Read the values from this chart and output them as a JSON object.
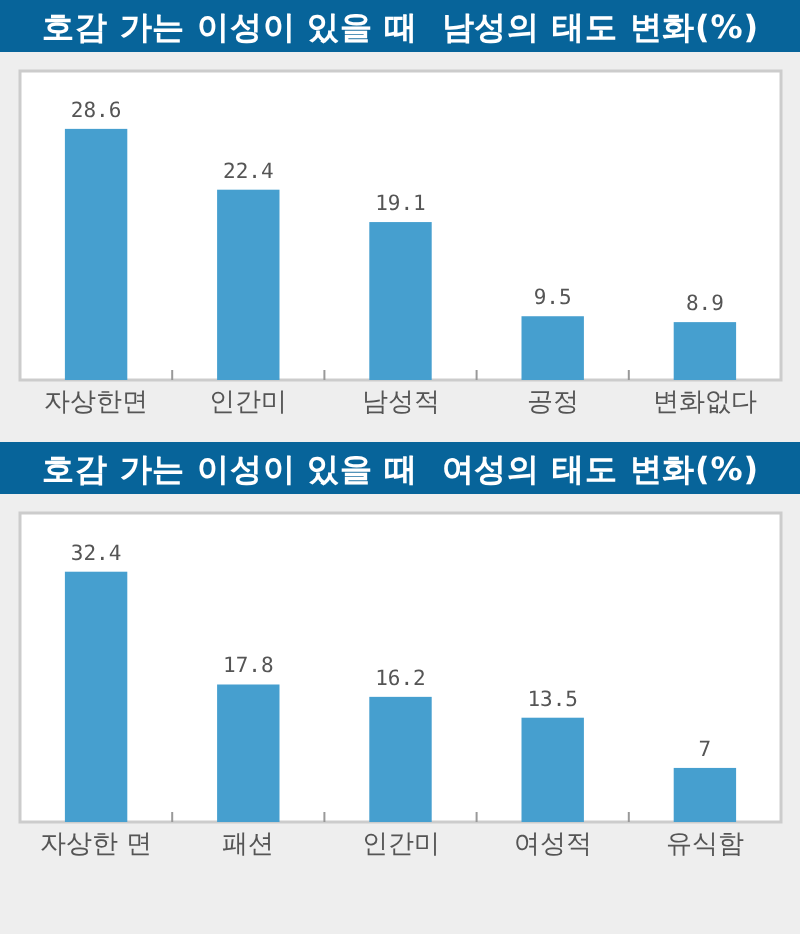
{
  "chart_data": [
    {
      "type": "bar",
      "title": "호감 가는 이성이 있을 때  남성의 태도 변화(%)",
      "categories": [
        "자상한면",
        "인간미",
        "남성적",
        "공정",
        "변화없다"
      ],
      "values": [
        28.6,
        22.4,
        19.1,
        9.5,
        8.9
      ],
      "color": "#469fcf",
      "ylim": [
        3,
        34.5
      ],
      "tick_labels": "x",
      "data_labels": true
    },
    {
      "type": "bar",
      "title": "호감 가는 이성이 있을 때  여성의 태도 변화(%)",
      "categories": [
        "자상한 면",
        "패션",
        "인간미",
        "여성적",
        "유식함"
      ],
      "values": [
        32.4,
        17.8,
        16.2,
        13.5,
        7
      ],
      "color": "#469fcf",
      "ylim": [
        0,
        40
      ],
      "tick_labels": "x",
      "data_labels": true
    }
  ]
}
